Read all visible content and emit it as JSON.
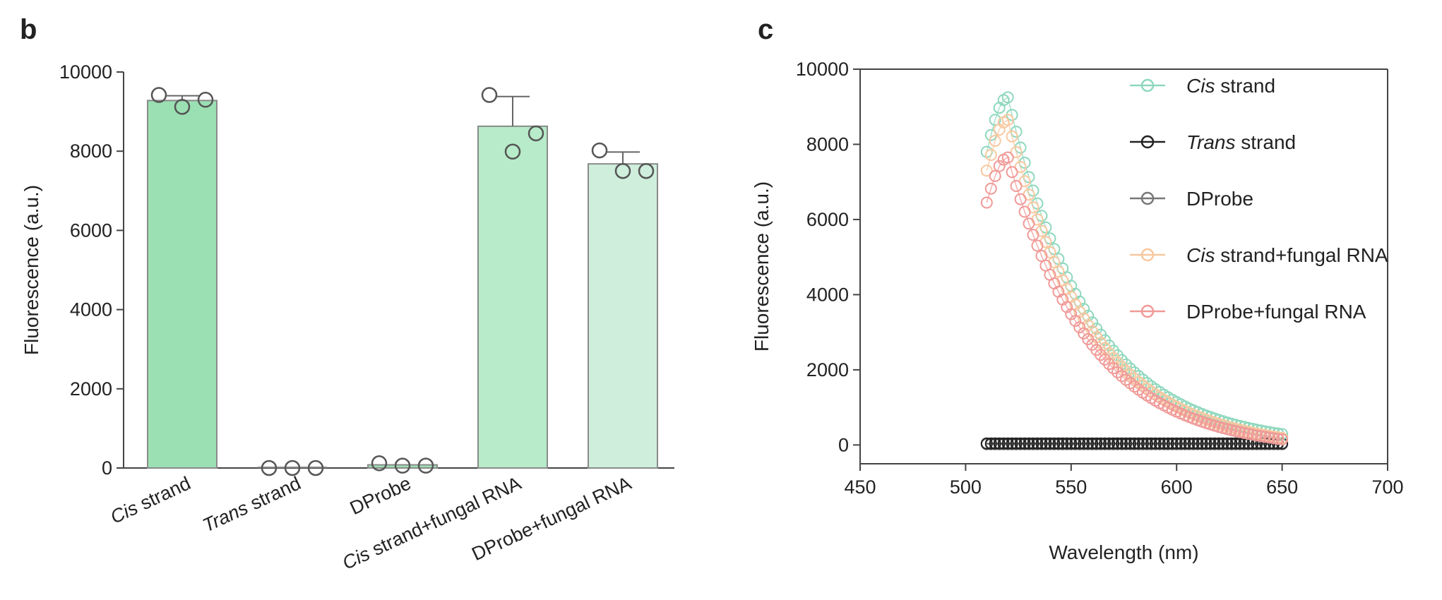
{
  "figure": {
    "panel_b_letter": "b",
    "panel_c_letter": "c"
  },
  "chart_data": [
    {
      "panel": "b",
      "type": "bar",
      "ylabel": "Fluorescence (a.u.)",
      "ylim": [
        0,
        10000
      ],
      "yticks": [
        "0",
        "2000",
        "4000",
        "6000",
        "8000",
        "10000"
      ],
      "categories": [
        {
          "name": "Cis strand",
          "italic": "Cis",
          "rest": " strand"
        },
        {
          "name": "Trans strand",
          "italic": "Trans",
          "rest": " strand"
        },
        {
          "name": "DProbe",
          "italic": "",
          "rest": "DProbe"
        },
        {
          "name": "Cis strand+fungal RNA",
          "italic": "Cis",
          "rest": " strand+fungal RNA"
        },
        {
          "name": "DProbe+fungal RNA",
          "italic": "",
          "rest": "DProbe+fungal RNA"
        }
      ],
      "values": [
        9280,
        0,
        80,
        8630,
        7680
      ],
      "error": [
        120,
        0,
        0,
        750,
        300
      ],
      "points": [
        [
          9420,
          9120,
          9300
        ],
        [
          0,
          0,
          0
        ],
        [
          120,
          60,
          60
        ],
        [
          9420,
          7990,
          8450
        ],
        [
          8020,
          7500,
          7500
        ]
      ],
      "bar_colors": [
        "#9be0b3",
        "#9be0b3",
        "#9be0b3",
        "#b7ebc9",
        "#cfefdc"
      ],
      "grid": false
    },
    {
      "panel": "c",
      "type": "scatter",
      "xlabel": "Wavelength (nm)",
      "ylabel": "Fluorescence (a.u.)",
      "xlim": [
        450,
        700
      ],
      "ylim": [
        -500,
        10000
      ],
      "xticks": [
        "450",
        "500",
        "550",
        "600",
        "650",
        "700"
      ],
      "yticks": [
        "0",
        "2000",
        "4000",
        "6000",
        "8000",
        "10000"
      ],
      "legend_position": "top-right",
      "x_start": 510,
      "x_end": 651,
      "x_step": 2,
      "series": [
        {
          "name": "Cis strand",
          "italic": "Cis",
          "rest": " strand",
          "color": "#8ed8bd",
          "peak_x": 520,
          "peak_y": 9250,
          "start_y": 7800,
          "end_y": 280
        },
        {
          "name": "Trans strand",
          "italic": "Trans",
          "rest": " strand",
          "color": "#222222",
          "flat_y": 40
        },
        {
          "name": "DProbe",
          "italic": "",
          "rest": "DProbe",
          "color": "#777777",
          "flat_y": 20
        },
        {
          "name": "Cis strand+fungal RNA",
          "italic": "Cis",
          "rest": " strand+fungal RNA",
          "color": "#f8c8a0",
          "peak_x": 520,
          "peak_y": 8650,
          "start_y": 7300,
          "end_y": 180
        },
        {
          "name": "DProbe+fungal RNA",
          "italic": "",
          "rest": "DProbe+fungal RNA",
          "color": "#f09a98",
          "peak_x": 520,
          "peak_y": 7650,
          "start_y": 6450,
          "end_y": 140
        }
      ],
      "grid": false
    }
  ]
}
